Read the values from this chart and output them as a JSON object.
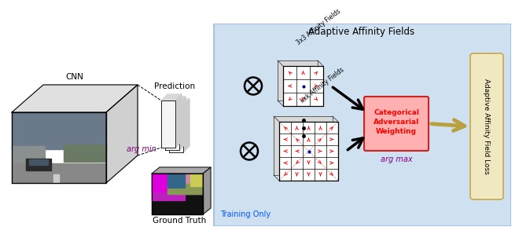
{
  "bg_color_left": "#ffffff",
  "bg_color_right": "#cfe0f0",
  "title_right": "Adaptive Affinity Fields",
  "label_cnn": "CNN",
  "label_prediction": "Prediction",
  "label_argmin": "arg min",
  "label_groundtruth": "Ground Truth",
  "label_training_only": "Training Only",
  "label_argmax": "arg max",
  "label_cat_adv": "Categorical\nAdversarial\nWeighting",
  "label_aaf_loss": "Adaptive Affinity Field Loss",
  "label_3x3": "3x3 Affinity Fields",
  "label_kxk": "kxk Affinity Fields",
  "cat_adv_bg": "#ffb0b0",
  "cat_adv_text": "#ff0000",
  "argmax_color": "#800080",
  "argmin_color": "#800080",
  "training_only_color": "#0055ff",
  "aaf_loss_bg": "#f0e8c0",
  "title_fontsize": 8.5,
  "small_fontsize": 7,
  "medium_fontsize": 7.5
}
